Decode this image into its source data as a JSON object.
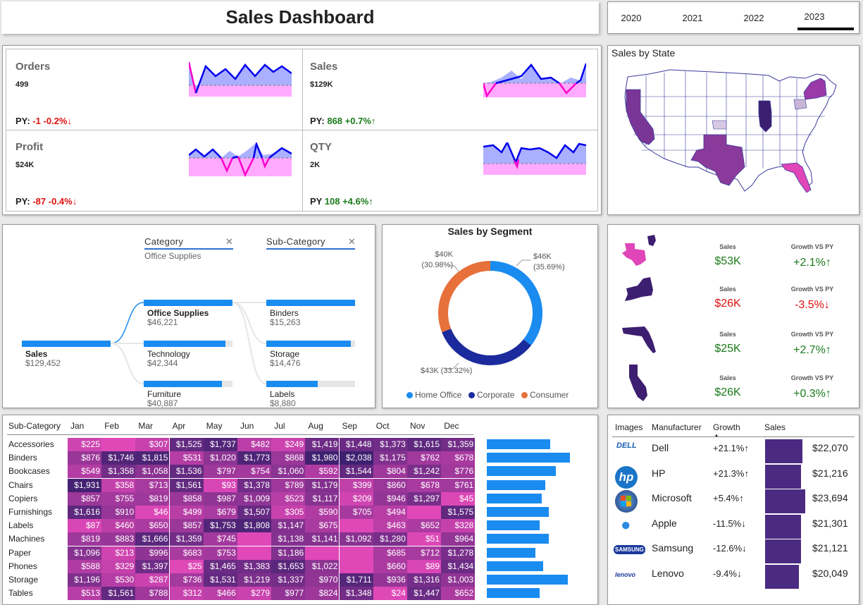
{
  "title": "Sales Dashboard",
  "years": [
    "2020",
    "2021",
    "2022",
    "2023"
  ],
  "selected_year": "2023",
  "kpis": [
    {
      "label": "Orders",
      "value": "499",
      "py_label": "PY:",
      "py_value": "-1",
      "py_pct": "-0.2%↓",
      "trend": "down"
    },
    {
      "label": "Sales",
      "value": "$129K",
      "py_label": "PY:",
      "py_value": "868",
      "py_pct": "+0.7%↑",
      "trend": "up"
    },
    {
      "label": "Profit",
      "value": "$24K",
      "py_label": "PY:",
      "py_value": "-87",
      "py_pct": "-0.4%↓",
      "trend": "down"
    },
    {
      "label": "QTY",
      "value": "2K",
      "py_label": "PY",
      "py_value": "108",
      "py_pct": "+4.6%↑",
      "trend": "up"
    }
  ],
  "map": {
    "title": "Sales by State"
  },
  "decomposition": {
    "category_header": "Category",
    "category_filter": "Office Supplies",
    "subcategory_header": "Sub-Category",
    "close_icon": "close-icon",
    "root": {
      "name": "Sales",
      "value": "$129,452"
    },
    "categories": [
      {
        "name": "Office Supplies",
        "value": "$46,221",
        "fraction": 1.0
      },
      {
        "name": "Technology",
        "value": "$42,344",
        "fraction": 0.92
      },
      {
        "name": "Furniture",
        "value": "$40,887",
        "fraction": 0.88
      }
    ],
    "subcategories": [
      {
        "name": "Binders",
        "value": "$15,263",
        "fraction": 1.0
      },
      {
        "name": "Storage",
        "value": "$14,476",
        "fraction": 0.95
      },
      {
        "name": "Labels",
        "value": "$8,880",
        "fraction": 0.58
      }
    ]
  },
  "segment": {
    "title": "Sales by Segment",
    "labels": [
      {
        "value": "$46K",
        "pct": "(35.69%)"
      },
      {
        "value": "$43K (33.32%)"
      },
      {
        "value": "$40K",
        "pct": "(30.98%)"
      }
    ],
    "legend": [
      "Home Office",
      "Corporate",
      "Consumer"
    ],
    "colors": {
      "Home Office": "#1a8cf0",
      "Corporate": "#1b2a9c",
      "Consumer": "#e8703a"
    }
  },
  "chart_data": {
    "type": "pie",
    "title": "Sales by Segment",
    "categories": [
      "Home Office",
      "Corporate",
      "Consumer"
    ],
    "values": [
      46,
      43,
      40
    ],
    "percentages": [
      35.69,
      33.32,
      30.98
    ]
  },
  "state_kpis": {
    "sales_header": "Sales",
    "growth_header": "Growth VS PY",
    "rows": [
      {
        "state_icon": "texas-icon",
        "sales": "$53K",
        "growth": "+2.1%↑",
        "trend": "up"
      },
      {
        "state_icon": "new-york-icon",
        "sales": "$26K",
        "growth": "-3.5%↓",
        "trend": "down"
      },
      {
        "state_icon": "florida-icon",
        "sales": "$25K",
        "growth": "+2.7%↑",
        "trend": "up"
      },
      {
        "state_icon": "california-icon",
        "sales": "$26K",
        "growth": "+0.3%↑",
        "trend": "up"
      }
    ]
  },
  "heatmap": {
    "row_header": "Sub-Category",
    "months": [
      "Jan",
      "Feb",
      "Mar",
      "Apr",
      "May",
      "Jun",
      "Jul",
      "Aug",
      "Sep",
      "Oct",
      "Nov",
      "Dec"
    ],
    "rows": [
      {
        "name": "Accessories",
        "cells": [
          "$225",
          "",
          "$307",
          "$1,525",
          "$1,737",
          "$482",
          "$249",
          "$1,419",
          "$1,448",
          "$1,373",
          "$1,615",
          "$1,359"
        ],
        "bar": 0.72
      },
      {
        "name": "Binders",
        "cells": [
          "$876",
          "$1,746",
          "$1,815",
          "$531",
          "$1,020",
          "$1,773",
          "$868",
          "$1,980",
          "$2,038",
          "$1,175",
          "$762",
          "$678"
        ],
        "bar": 0.94
      },
      {
        "name": "Bookcases",
        "cells": [
          "$549",
          "$1,358",
          "$1,058",
          "$1,536",
          "$797",
          "$754",
          "$1,060",
          "$592",
          "$1,544",
          "$804",
          "$1,242",
          "$776"
        ],
        "bar": 0.78
      },
      {
        "name": "Chairs",
        "cells": [
          "$1,931",
          "$358",
          "$713",
          "$1,561",
          "$93",
          "$1,378",
          "$789",
          "$1,179",
          "$399",
          "$860",
          "$678",
          "$761"
        ],
        "bar": 0.66
      },
      {
        "name": "Copiers",
        "cells": [
          "$857",
          "$755",
          "$819",
          "$858",
          "$987",
          "$1,009",
          "$523",
          "$1,117",
          "$209",
          "$946",
          "$1,297",
          "$45"
        ],
        "bar": 0.62
      },
      {
        "name": "Furnishings",
        "cells": [
          "$1,616",
          "$910",
          "$46",
          "$499",
          "$679",
          "$1,507",
          "$305",
          "$590",
          "$705",
          "$494",
          "",
          "$1,575"
        ],
        "bar": 0.7
      },
      {
        "name": "Labels",
        "cells": [
          "$87",
          "$460",
          "$650",
          "$857",
          "$1,753",
          "$1,808",
          "$1,147",
          "$675",
          "",
          "$463",
          "$652",
          "$328"
        ],
        "bar": 0.6
      },
      {
        "name": "Machines",
        "cells": [
          "$819",
          "$883",
          "$1,666",
          "$1,359",
          "$745",
          "",
          "$1,138",
          "$1,141",
          "$1,092",
          "$1,280",
          "$51",
          "$964"
        ],
        "bar": 0.7
      },
      {
        "name": "Paper",
        "cells": [
          "$1,096",
          "$213",
          "$996",
          "$683",
          "$753",
          "",
          "$1,186",
          "",
          "",
          "$685",
          "$712",
          "$1,278"
        ],
        "bar": 0.55
      },
      {
        "name": "Phones",
        "cells": [
          "$588",
          "$329",
          "$1,397",
          "$25",
          "$1,465",
          "$1,383",
          "$1,653",
          "$1,022",
          "",
          "$660",
          "$89",
          "$1,434"
        ],
        "bar": 0.64
      },
      {
        "name": "Storage",
        "cells": [
          "$1,196",
          "$530",
          "$287",
          "$736",
          "$1,531",
          "$1,219",
          "$1,337",
          "$970",
          "$1,711",
          "$936",
          "$1,316",
          "$1,003"
        ],
        "bar": 0.92
      },
      {
        "name": "Tables",
        "cells": [
          "$513",
          "$1,561",
          "$788",
          "$312",
          "$466",
          "$279",
          "$977",
          "$824",
          "$1,348",
          "$24",
          "$1,447",
          "$652"
        ],
        "bar": 0.6
      }
    ]
  },
  "manufacturers": {
    "headers": [
      "Images",
      "Manufacturer",
      "Growth",
      "Sales"
    ],
    "rows": [
      {
        "logo": "DELL",
        "name": "Dell",
        "growth": "+21.1%↑",
        "trend": "up",
        "sales": "$22,070",
        "bar": 0.93
      },
      {
        "logo": "hp",
        "name": "HP",
        "growth": "+21.3%↑",
        "trend": "up",
        "sales": "$21,216",
        "bar": 0.89
      },
      {
        "logo": "windows-logo",
        "name": "Microsoft",
        "growth": "+5.4%↑",
        "trend": "up",
        "sales": "$23,694",
        "bar": 1.0
      },
      {
        "logo": "apple-logo",
        "name": "Apple",
        "growth": "-11.5%↓",
        "trend": "down",
        "sales": "$21,301",
        "bar": 0.9
      },
      {
        "logo": "SAMSUNG",
        "name": "Samsung",
        "growth": "-12.6%↓",
        "trend": "down",
        "sales": "$21,121",
        "bar": 0.89
      },
      {
        "logo": "lenovo",
        "name": "Lenovo",
        "growth": "-9.4%↓",
        "trend": "down",
        "sales": "$20,049",
        "bar": 0.85
      }
    ]
  }
}
